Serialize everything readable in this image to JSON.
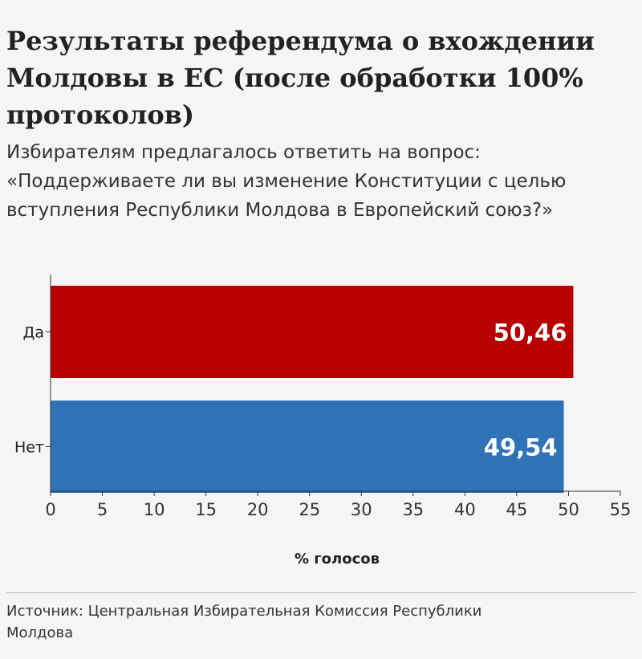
{
  "title": "Результаты референдума о вхождении Молдовы в ЕС (после обработки 100% протоколов)",
  "subtitle": "Избирателям предлагалось ответить на вопрос: «Поддерживаете ли вы изменение Конституции с целью вступления Республики Молдова в Европейский союз?»",
  "source": "Источник: Центральная Избирательная Комиссия Республики Молдова",
  "chart_data": {
    "type": "bar",
    "orientation": "horizontal",
    "categories": [
      "Да",
      "Нет"
    ],
    "values": [
      50.46,
      49.54
    ],
    "value_labels": [
      "50,46",
      "49,54"
    ],
    "colors": [
      "#b80000",
      "#2f73b6"
    ],
    "xlabel": "% голосов",
    "xlim": [
      0,
      55
    ],
    "xticks": [
      0,
      5,
      10,
      15,
      20,
      25,
      30,
      35,
      40,
      45,
      50,
      55
    ],
    "grid": false,
    "legend": "none"
  }
}
